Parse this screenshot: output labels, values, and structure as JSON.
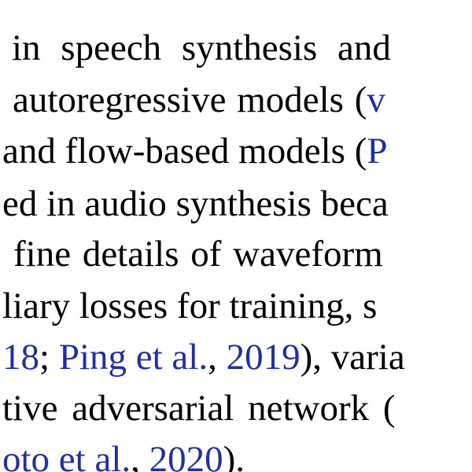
{
  "lines": [
    {
      "id": "l1",
      "segments": [
        {
          "text": "in speech synthesis and",
          "cite": false
        }
      ]
    },
    {
      "id": "l2",
      "segments": [
        {
          "text": "autoregressive models (",
          "cite": false
        },
        {
          "text": "v",
          "cite": true
        }
      ]
    },
    {
      "id": "l3",
      "segments": [
        {
          "text": "and flow-based models (",
          "cite": false
        },
        {
          "text": "P",
          "cite": true
        }
      ]
    },
    {
      "id": "l4",
      "segments": [
        {
          "text": "ed in audio synthesis beca",
          "cite": false
        }
      ]
    },
    {
      "id": "l5",
      "segments": [
        {
          "text": "fine details of waveform",
          "cite": false
        }
      ]
    },
    {
      "id": "l6",
      "segments": [
        {
          "text": "liary losses for training, s",
          "cite": false
        }
      ]
    },
    {
      "id": "l7",
      "segments": [
        {
          "text": "18",
          "cite": true
        },
        {
          "text": "; ",
          "cite": false
        },
        {
          "text": "Ping et al.",
          "cite": true
        },
        {
          "text": ", ",
          "cite": false
        },
        {
          "text": "2019",
          "cite": true
        },
        {
          "text": "), varia",
          "cite": false
        }
      ]
    },
    {
      "id": "l8",
      "segments": [
        {
          "text": "tive adversarial network (",
          "cite": false
        }
      ]
    },
    {
      "id": "l9",
      "segments": [
        {
          "text": "oto et al.",
          "cite": true
        },
        {
          "text": ", ",
          "cite": false
        },
        {
          "text": "2020",
          "cite": true
        },
        {
          "text": ").",
          "cite": false
        }
      ]
    }
  ],
  "colors": {
    "text": "#000000",
    "citation": "#1f2fa8",
    "background": "#ffffff"
  }
}
